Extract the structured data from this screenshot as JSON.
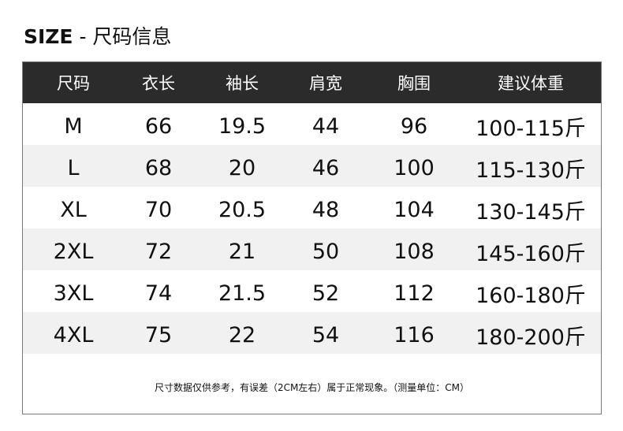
{
  "title": {
    "prefix": "SIZE",
    "suffix": " - 尺码信息"
  },
  "colors": {
    "header_bg": "#2b2b2b",
    "alt_row_bg": "#f1f1f1"
  },
  "table": {
    "headers": [
      "尺码",
      "衣长",
      "袖长",
      "肩宽",
      "胸围",
      "建议体重"
    ],
    "rows": [
      [
        "M",
        "66",
        "19.5",
        "44",
        "96",
        "100-115斤"
      ],
      [
        "L",
        "68",
        "20",
        "46",
        "100",
        "115-130斤"
      ],
      [
        "XL",
        "70",
        "20.5",
        "48",
        "104",
        "130-145斤"
      ],
      [
        "2XL",
        "72",
        "21",
        "50",
        "108",
        "145-160斤"
      ],
      [
        "3XL",
        "74",
        "21.5",
        "52",
        "112",
        "160-180斤"
      ],
      [
        "4XL",
        "75",
        "22",
        "54",
        "116",
        "180-200斤"
      ]
    ]
  },
  "note": "尺寸数据仅供参考，有误差（2CM左右）属于正常现象。（测量单位：CM）"
}
